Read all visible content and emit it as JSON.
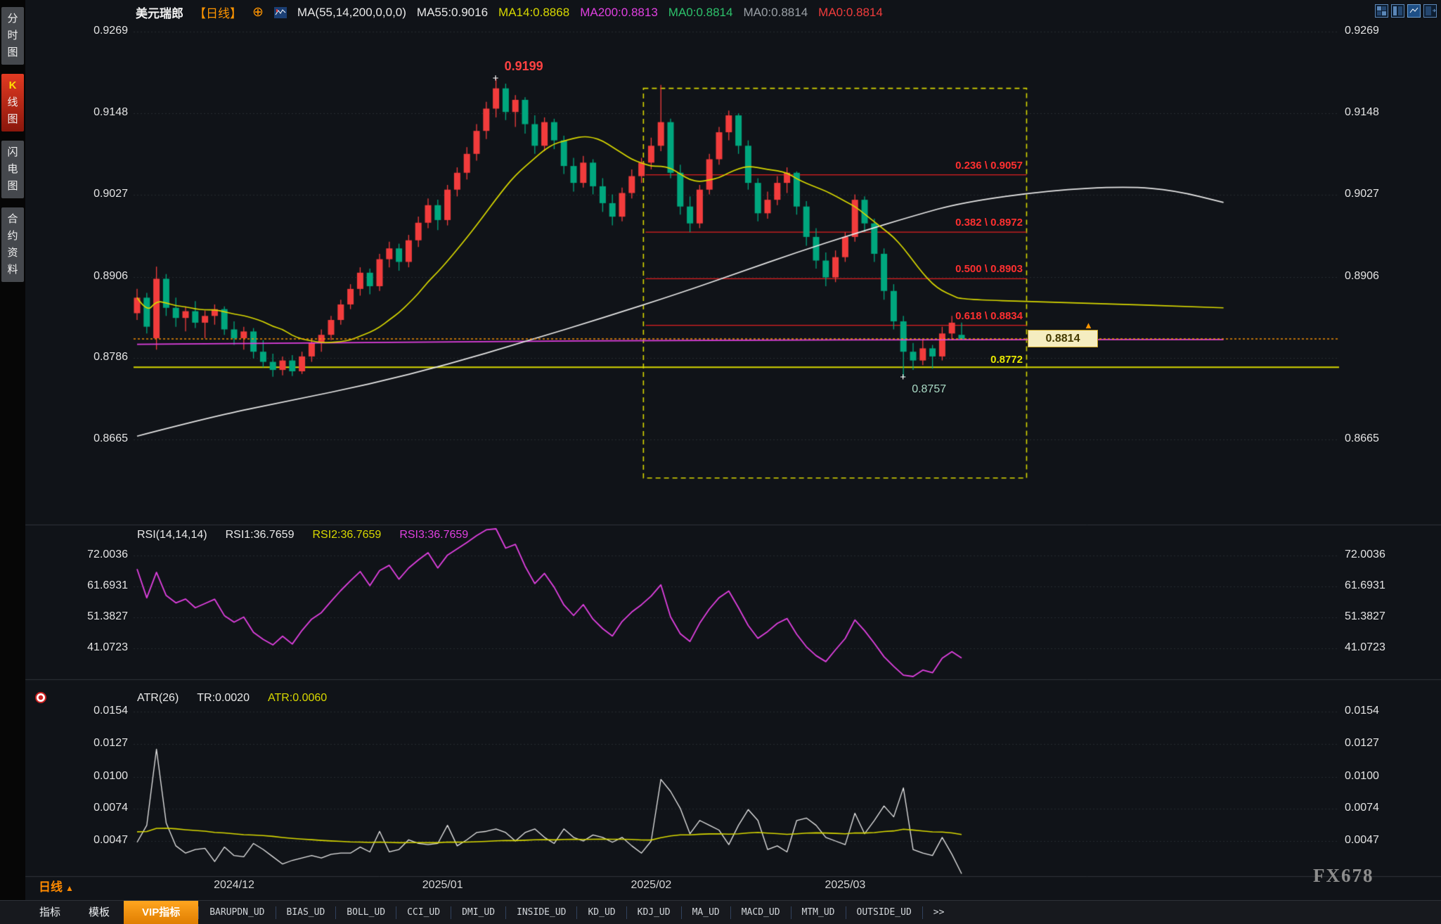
{
  "app": {
    "watermark": "FX678"
  },
  "sidebar": {
    "items": [
      {
        "label": "分时图",
        "name": "intraday-chart",
        "selected": false
      },
      {
        "label": "K线图",
        "name": "kline-chart",
        "selected": true
      },
      {
        "label": "闪电图",
        "name": "lightning-chart",
        "selected": false
      },
      {
        "label": "合约资料",
        "name": "contract-info",
        "selected": false
      }
    ]
  },
  "header": {
    "symbol": "美元瑞郎",
    "period": "【日线】",
    "add_icon": "⊕",
    "ma_settings": "MA(55,14,200,0,0,0)",
    "ma_values": [
      {
        "text": "MA55:0.9016",
        "color": "#e8e8e8"
      },
      {
        "text": "MA14:0.8868",
        "color": "#d8d800"
      },
      {
        "text": "MA200:0.8813",
        "color": "#e040e0"
      },
      {
        "text": "MA0:0.8814",
        "color": "#2dc26b"
      },
      {
        "text": "MA0:0.8814",
        "color": "#9aa0a6"
      },
      {
        "text": "MA0:0.8814",
        "color": "#f23c3c"
      }
    ],
    "layout_icons": [
      {
        "name": "layout-quad-icon"
      },
      {
        "name": "layout-columns-icon"
      },
      {
        "name": "layout-chart-icon"
      },
      {
        "name": "layout-panel-icon"
      }
    ]
  },
  "rsi_panel": {
    "title": "RSI(14,14,14)",
    "values": [
      {
        "text": "RSI1:36.7659",
        "color": "#e8e8e8"
      },
      {
        "text": "RSI2:36.7659",
        "color": "#d8d800"
      },
      {
        "text": "RSI3:36.7659",
        "color": "#e040e0"
      }
    ]
  },
  "atr_panel": {
    "title": "ATR(26)",
    "values": [
      {
        "text": "TR:0.0020",
        "color": "#e8e8e8"
      },
      {
        "text": "ATR:0.0060",
        "color": "#d8d800"
      }
    ]
  },
  "footer": {
    "period_label": "日线",
    "period_arrow": "▲",
    "tabs": [
      {
        "label": "指标",
        "highlight": false
      },
      {
        "label": "模板",
        "highlight": false
      },
      {
        "label": "VIP指标",
        "highlight": true
      }
    ],
    "indicators": [
      "BARUPDN_UD",
      "BIAS_UD",
      "BOLL_UD",
      "CCI_UD",
      "DMI_UD",
      "INSIDE_UD",
      "KD_UD",
      "KDJ_UD",
      "MA_UD",
      "MACD_UD",
      "MTM_UD",
      "OUTSIDE_UD"
    ],
    "more": ">>"
  },
  "chart_data": {
    "type": "candlestick",
    "title": "美元瑞郎 日线",
    "price_axis_ticks": [
      "0.9269",
      "0.9148",
      "0.9027",
      "0.8906",
      "0.8786",
      "0.8665"
    ],
    "price_axis_ticks_right": [
      "0.9269",
      "0.9148",
      "0.9027",
      "0.8906",
      "0.8665"
    ],
    "x_axis": {
      "month_labels": [
        "2024/12",
        "2025/01",
        "2025/02",
        "2025/03"
      ],
      "label_slots": [
        10,
        31.5,
        53,
        73
      ]
    },
    "colors": {
      "up": "#f23c3c",
      "down": "#00a77e",
      "ma55": "#e8e8e8",
      "ma14": "#d8d800",
      "ma200": "#e040e0",
      "rsi": "#e040e0",
      "tr": "#e8e8e8",
      "atr": "#d8d800",
      "fib": "#e02020",
      "support": "#d8d800",
      "price_line": "#ff9500",
      "grid": "#262b31"
    },
    "candles": [
      [
        0.8852,
        0.8888,
        0.8842,
        0.8875
      ],
      [
        0.8875,
        0.8882,
        0.8822,
        0.8832
      ],
      [
        0.8815,
        0.8921,
        0.8798,
        0.8903
      ],
      [
        0.8903,
        0.891,
        0.8848,
        0.886
      ],
      [
        0.886,
        0.8875,
        0.8832,
        0.8845
      ],
      [
        0.8845,
        0.8862,
        0.8825,
        0.8855
      ],
      [
        0.8855,
        0.887,
        0.883,
        0.8838
      ],
      [
        0.8838,
        0.8856,
        0.8815,
        0.8848
      ],
      [
        0.8848,
        0.8865,
        0.8835,
        0.8858
      ],
      [
        0.8858,
        0.8862,
        0.882,
        0.8828
      ],
      [
        0.8828,
        0.884,
        0.8805,
        0.8815
      ],
      [
        0.8815,
        0.8832,
        0.8798,
        0.8825
      ],
      [
        0.8825,
        0.883,
        0.8785,
        0.8795
      ],
      [
        0.8795,
        0.8812,
        0.8772,
        0.878
      ],
      [
        0.878,
        0.8792,
        0.8758,
        0.8768
      ],
      [
        0.8768,
        0.8788,
        0.876,
        0.8782
      ],
      [
        0.8782,
        0.879,
        0.8759,
        0.8766
      ],
      [
        0.8766,
        0.8795,
        0.8762,
        0.8788
      ],
      [
        0.8788,
        0.8815,
        0.878,
        0.8808
      ],
      [
        0.8808,
        0.8828,
        0.8795,
        0.882
      ],
      [
        0.882,
        0.8848,
        0.8812,
        0.8842
      ],
      [
        0.8842,
        0.8872,
        0.8835,
        0.8865
      ],
      [
        0.8865,
        0.8895,
        0.8858,
        0.8888
      ],
      [
        0.8888,
        0.892,
        0.8878,
        0.8912
      ],
      [
        0.8912,
        0.8918,
        0.888,
        0.8892
      ],
      [
        0.8892,
        0.894,
        0.8885,
        0.8932
      ],
      [
        0.8932,
        0.8958,
        0.892,
        0.8948
      ],
      [
        0.8948,
        0.8955,
        0.8915,
        0.8928
      ],
      [
        0.8928,
        0.8968,
        0.892,
        0.896
      ],
      [
        0.896,
        0.8995,
        0.895,
        0.8986
      ],
      [
        0.8986,
        0.9022,
        0.8978,
        0.9012
      ],
      [
        0.9012,
        0.902,
        0.8975,
        0.899
      ],
      [
        0.899,
        0.9042,
        0.8982,
        0.9035
      ],
      [
        0.9035,
        0.9068,
        0.9025,
        0.906
      ],
      [
        0.906,
        0.9098,
        0.905,
        0.9088
      ],
      [
        0.9088,
        0.9132,
        0.9078,
        0.9122
      ],
      [
        0.9122,
        0.9165,
        0.911,
        0.9155
      ],
      [
        0.9155,
        0.9199,
        0.9142,
        0.9185
      ],
      [
        0.9185,
        0.9192,
        0.9138,
        0.915
      ],
      [
        0.915,
        0.9175,
        0.9128,
        0.9168
      ],
      [
        0.9168,
        0.9172,
        0.9118,
        0.9132
      ],
      [
        0.9132,
        0.9145,
        0.9088,
        0.91
      ],
      [
        0.91,
        0.9142,
        0.9092,
        0.9135
      ],
      [
        0.9135,
        0.914,
        0.9095,
        0.9108
      ],
      [
        0.9108,
        0.9115,
        0.9058,
        0.907
      ],
      [
        0.907,
        0.9082,
        0.9032,
        0.9045
      ],
      [
        0.9045,
        0.9085,
        0.9038,
        0.9075
      ],
      [
        0.9075,
        0.908,
        0.9028,
        0.904
      ],
      [
        0.904,
        0.9052,
        0.9002,
        0.9015
      ],
      [
        0.9015,
        0.9028,
        0.8982,
        0.8995
      ],
      [
        0.8995,
        0.9038,
        0.8988,
        0.903
      ],
      [
        0.903,
        0.9065,
        0.9022,
        0.9055
      ],
      [
        0.9055,
        0.9082,
        0.9045,
        0.9075
      ],
      [
        0.9075,
        0.9112,
        0.9065,
        0.91
      ],
      [
        0.91,
        0.919,
        0.9092,
        0.9135
      ],
      [
        0.9135,
        0.914,
        0.9052,
        0.906
      ],
      [
        0.906,
        0.9072,
        0.8998,
        0.901
      ],
      [
        0.901,
        0.9025,
        0.8972,
        0.8985
      ],
      [
        0.8985,
        0.9042,
        0.8978,
        0.9035
      ],
      [
        0.9035,
        0.9088,
        0.9028,
        0.908
      ],
      [
        0.908,
        0.9128,
        0.9072,
        0.912
      ],
      [
        0.912,
        0.9152,
        0.9108,
        0.9145
      ],
      [
        0.9145,
        0.9148,
        0.9088,
        0.91
      ],
      [
        0.91,
        0.9108,
        0.9035,
        0.9045
      ],
      [
        0.9045,
        0.9052,
        0.8988,
        0.9
      ],
      [
        0.9,
        0.9032,
        0.8992,
        0.902
      ],
      [
        0.902,
        0.9055,
        0.9012,
        0.9045
      ],
      [
        0.9045,
        0.9068,
        0.903,
        0.906
      ],
      [
        0.906,
        0.9062,
        0.8998,
        0.901
      ],
      [
        0.901,
        0.9018,
        0.8952,
        0.8965
      ],
      [
        0.8965,
        0.8978,
        0.8918,
        0.893
      ],
      [
        0.893,
        0.8942,
        0.8892,
        0.8905
      ],
      [
        0.8905,
        0.8945,
        0.8898,
        0.8935
      ],
      [
        0.8935,
        0.8972,
        0.8928,
        0.8965
      ],
      [
        0.8965,
        0.9028,
        0.8958,
        0.902
      ],
      [
        0.902,
        0.9025,
        0.8972,
        0.8985
      ],
      [
        0.8985,
        0.8992,
        0.8928,
        0.894
      ],
      [
        0.894,
        0.8948,
        0.8872,
        0.8885
      ],
      [
        0.8885,
        0.8895,
        0.8828,
        0.884
      ],
      [
        0.884,
        0.8848,
        0.8757,
        0.8795
      ],
      [
        0.8795,
        0.8808,
        0.8768,
        0.8782
      ],
      [
        0.8782,
        0.8812,
        0.8775,
        0.88
      ],
      [
        0.88,
        0.8805,
        0.877,
        0.8788
      ],
      [
        0.8788,
        0.8832,
        0.8782,
        0.8822
      ],
      [
        0.8822,
        0.8848,
        0.8812,
        0.8838
      ],
      [
        0.882,
        0.8838,
        0.8818,
        0.8814
      ]
    ],
    "overlays": {
      "ma14_window": 14,
      "ma55_points": [
        [
          0,
          0.867
        ],
        [
          8,
          0.87
        ],
        [
          16,
          0.8723
        ],
        [
          24,
          0.8747
        ],
        [
          32,
          0.8776
        ],
        [
          40,
          0.881
        ],
        [
          48,
          0.8845
        ],
        [
          56,
          0.8882
        ],
        [
          62,
          0.8912
        ],
        [
          68,
          0.8942
        ],
        [
          74,
          0.897
        ],
        [
          80,
          0.8996
        ],
        [
          85,
          0.9016
        ],
        [
          94,
          0.9034
        ],
        [
          102,
          0.904
        ],
        [
          107,
          0.9034
        ],
        [
          112,
          0.9016
        ]
      ],
      "ma200_points": [
        [
          0,
          0.8806
        ],
        [
          30,
          0.881
        ],
        [
          60,
          0.8812
        ],
        [
          85,
          0.8813
        ],
        [
          112,
          0.8813
        ]
      ],
      "ma14_extension": [
        [
          96,
          0.8868
        ],
        [
          112,
          0.886
        ]
      ],
      "support_level": {
        "text": "0.8772",
        "price": 0.8772
      },
      "current_price": {
        "text": "0.8814",
        "price": 0.8814,
        "pointer": "▲"
      },
      "high_label": {
        "text": "0.9199",
        "price": 0.9199,
        "slot": 37,
        "marker": "+"
      },
      "low_label": {
        "text": "0.8757",
        "price": 0.8757,
        "slot": 79,
        "marker": "+"
      },
      "fib_levels": [
        {
          "text": "0.236 \\ 0.9057",
          "price": 0.9057
        },
        {
          "text": "0.382 \\ 0.8972",
          "price": 0.8972
        },
        {
          "text": "0.500 \\ 0.8903",
          "price": 0.8903
        },
        {
          "text": "0.618 \\ 0.8834",
          "price": 0.8834
        }
      ],
      "selection_rect": {
        "slot_start": 52.2,
        "slot_end": 91.7,
        "price_top": 0.9185,
        "price_bottom": 0.8608
      }
    },
    "rsi": {
      "period": 14,
      "current": 36.7659,
      "seed_gain": 0.00135,
      "seed_loss": 0.00065,
      "axis_ticks": [
        "72.0036",
        "61.6931",
        "51.3827",
        "41.0723"
      ]
    },
    "atr": {
      "period": 26,
      "tr_current": 0.002,
      "atr_current": 0.006,
      "seed": 0.0055,
      "axis_ticks": [
        "0.0154",
        "0.0127",
        "0.0100",
        "0.0074",
        "0.0047"
      ]
    }
  }
}
